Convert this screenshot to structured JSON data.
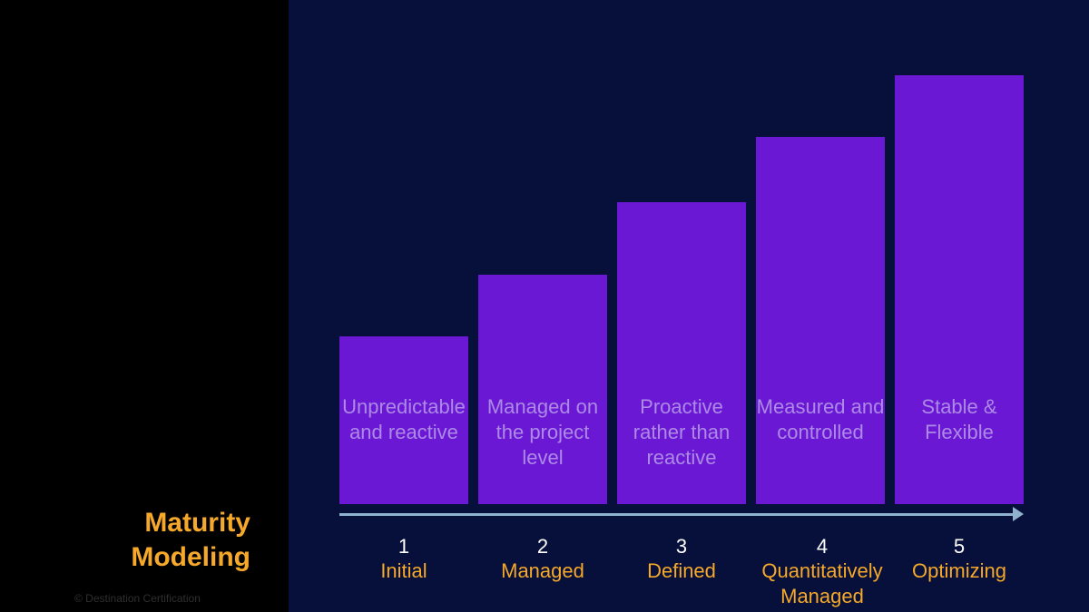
{
  "slide": {
    "title_line1": "Maturity",
    "title_line2": "Modeling",
    "copyright": "© Destination Certification"
  },
  "colors": {
    "accent": "#f5a82a",
    "bar": "#6a18d4",
    "bar_text": "#ad8ae6",
    "main_background": "#07103a",
    "axis": "#8fb3cf"
  },
  "levels": [
    {
      "number": "1",
      "name_lines": [
        "Initial"
      ],
      "description_lines": [
        "Unpredictable",
        "and reactive"
      ]
    },
    {
      "number": "2",
      "name_lines": [
        "Managed"
      ],
      "description_lines": [
        "Managed on",
        "the project",
        "level"
      ]
    },
    {
      "number": "3",
      "name_lines": [
        "Defined"
      ],
      "description_lines": [
        "Proactive",
        "rather than",
        "reactive"
      ]
    },
    {
      "number": "4",
      "name_lines": [
        "Quantitatively",
        "Managed"
      ],
      "description_lines": [
        "Measured and",
        "controlled"
      ]
    },
    {
      "number": "5",
      "name_lines": [
        "Optimizing"
      ],
      "description_lines": [
        "Stable &",
        "Flexible"
      ]
    }
  ]
}
